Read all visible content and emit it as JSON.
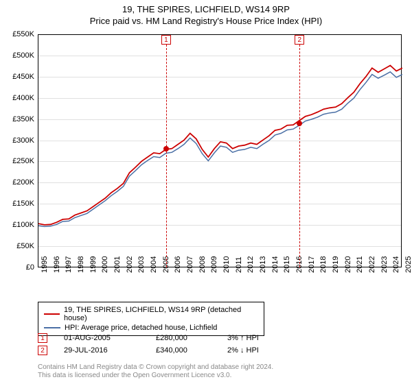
{
  "title": "19, THE SPIRES, LICHFIELD, WS14 9RP",
  "subtitle": "Price paid vs. HM Land Registry's House Price Index (HPI)",
  "chart": {
    "type": "line",
    "background_color": "#ffffff",
    "grid_color": "#e0e0e0",
    "border_color": "#000000",
    "ylim": [
      0,
      550000
    ],
    "ytick_step": 50000,
    "yticks": [
      "£0",
      "£50K",
      "£100K",
      "£150K",
      "£200K",
      "£250K",
      "£300K",
      "£350K",
      "£400K",
      "£450K",
      "£500K",
      "£550K"
    ],
    "xlim": [
      1995,
      2025
    ],
    "xticks": [
      1995,
      1996,
      1997,
      1998,
      1999,
      2000,
      2001,
      2002,
      2003,
      2004,
      2005,
      2006,
      2007,
      2008,
      2009,
      2010,
      2011,
      2012,
      2013,
      2014,
      2015,
      2016,
      2017,
      2018,
      2019,
      2020,
      2021,
      2022,
      2023,
      2024,
      2025
    ],
    "series": [
      {
        "name": "property",
        "label": "19, THE SPIRES, LICHFIELD, WS14 9RP (detached house)",
        "color": "#cc0000",
        "line_width": 1.8,
        "data": [
          [
            1995,
            105000
          ],
          [
            1995.5,
            102000
          ],
          [
            1996,
            103000
          ],
          [
            1996.5,
            108000
          ],
          [
            1997,
            115000
          ],
          [
            1997.5,
            116000
          ],
          [
            1998,
            125000
          ],
          [
            1998.5,
            130000
          ],
          [
            1999,
            135000
          ],
          [
            1999.5,
            145000
          ],
          [
            2000,
            155000
          ],
          [
            2000.5,
            165000
          ],
          [
            2001,
            178000
          ],
          [
            2001.5,
            188000
          ],
          [
            2002,
            200000
          ],
          [
            2002.5,
            225000
          ],
          [
            2003,
            238000
          ],
          [
            2003.5,
            252000
          ],
          [
            2004,
            262000
          ],
          [
            2004.5,
            272000
          ],
          [
            2005,
            270000
          ],
          [
            2005.5,
            280000
          ],
          [
            2006,
            282000
          ],
          [
            2006.5,
            292000
          ],
          [
            2007,
            302000
          ],
          [
            2007.5,
            318000
          ],
          [
            2008,
            305000
          ],
          [
            2008.5,
            280000
          ],
          [
            2009,
            262000
          ],
          [
            2009.5,
            282000
          ],
          [
            2010,
            298000
          ],
          [
            2010.5,
            295000
          ],
          [
            2011,
            282000
          ],
          [
            2011.5,
            288000
          ],
          [
            2012,
            290000
          ],
          [
            2012.5,
            295000
          ],
          [
            2013,
            292000
          ],
          [
            2013.5,
            302000
          ],
          [
            2014,
            312000
          ],
          [
            2014.5,
            325000
          ],
          [
            2015,
            328000
          ],
          [
            2015.5,
            337000
          ],
          [
            2016,
            338000
          ],
          [
            2016.5,
            348000
          ],
          [
            2017,
            358000
          ],
          [
            2017.5,
            362000
          ],
          [
            2018,
            368000
          ],
          [
            2018.5,
            375000
          ],
          [
            2019,
            378000
          ],
          [
            2019.5,
            380000
          ],
          [
            2020,
            388000
          ],
          [
            2020.5,
            402000
          ],
          [
            2021,
            415000
          ],
          [
            2021.5,
            435000
          ],
          [
            2022,
            452000
          ],
          [
            2022.5,
            472000
          ],
          [
            2023,
            462000
          ],
          [
            2023.5,
            470000
          ],
          [
            2024,
            478000
          ],
          [
            2024.5,
            465000
          ],
          [
            2025,
            472000
          ]
        ]
      },
      {
        "name": "hpi",
        "label": "HPI: Average price, detached house, Lichfield",
        "color": "#4a6fa5",
        "line_width": 1.5,
        "data": [
          [
            1995,
            100000
          ],
          [
            1995.5,
            98000
          ],
          [
            1996,
            99000
          ],
          [
            1996.5,
            103000
          ],
          [
            1997,
            110000
          ],
          [
            1997.5,
            111000
          ],
          [
            1998,
            119000
          ],
          [
            1998.5,
            124000
          ],
          [
            1999,
            129000
          ],
          [
            1999.5,
            139000
          ],
          [
            2000,
            149000
          ],
          [
            2000.5,
            159000
          ],
          [
            2001,
            171000
          ],
          [
            2001.5,
            181000
          ],
          [
            2002,
            193000
          ],
          [
            2002.5,
            217000
          ],
          [
            2003,
            230000
          ],
          [
            2003.5,
            244000
          ],
          [
            2004,
            254000
          ],
          [
            2004.5,
            263000
          ],
          [
            2005,
            261000
          ],
          [
            2005.5,
            271000
          ],
          [
            2006,
            273000
          ],
          [
            2006.5,
            282000
          ],
          [
            2007,
            292000
          ],
          [
            2007.5,
            307000
          ],
          [
            2008,
            294000
          ],
          [
            2008.5,
            270000
          ],
          [
            2009,
            253000
          ],
          [
            2009.5,
            272000
          ],
          [
            2010,
            288000
          ],
          [
            2010.5,
            285000
          ],
          [
            2011,
            273000
          ],
          [
            2011.5,
            278000
          ],
          [
            2012,
            280000
          ],
          [
            2012.5,
            285000
          ],
          [
            2013,
            282000
          ],
          [
            2013.5,
            292000
          ],
          [
            2014,
            301000
          ],
          [
            2014.5,
            314000
          ],
          [
            2015,
            318000
          ],
          [
            2015.5,
            326000
          ],
          [
            2016,
            328000
          ],
          [
            2016.5,
            337000
          ],
          [
            2017,
            347000
          ],
          [
            2017.5,
            351000
          ],
          [
            2018,
            356000
          ],
          [
            2018.5,
            363000
          ],
          [
            2019,
            366000
          ],
          [
            2019.5,
            368000
          ],
          [
            2020,
            375000
          ],
          [
            2020.5,
            389000
          ],
          [
            2021,
            401000
          ],
          [
            2021.5,
            421000
          ],
          [
            2022,
            438000
          ],
          [
            2022.5,
            457000
          ],
          [
            2023,
            448000
          ],
          [
            2023.5,
            455000
          ],
          [
            2024,
            463000
          ],
          [
            2024.5,
            450000
          ],
          [
            2025,
            457000
          ]
        ]
      }
    ],
    "sales": [
      {
        "n": "1",
        "date": "01-AUG-2005",
        "year": 2005.58,
        "price": 280000,
        "price_label": "£280,000",
        "delta": "3% ↑ HPI"
      },
      {
        "n": "2",
        "date": "29-JUL-2016",
        "year": 2016.58,
        "price": 340000,
        "price_label": "£340,000",
        "delta": "2% ↓ HPI"
      }
    ]
  },
  "legend": {
    "rows": [
      {
        "color": "#cc0000",
        "label": "19, THE SPIRES, LICHFIELD, WS14 9RP (detached house)"
      },
      {
        "color": "#4a6fa5",
        "label": "HPI: Average price, detached house, Lichfield"
      }
    ]
  },
  "licence": {
    "line1": "Contains HM Land Registry data © Crown copyright and database right 2024.",
    "line2": "This data is licensed under the Open Government Licence v3.0."
  }
}
